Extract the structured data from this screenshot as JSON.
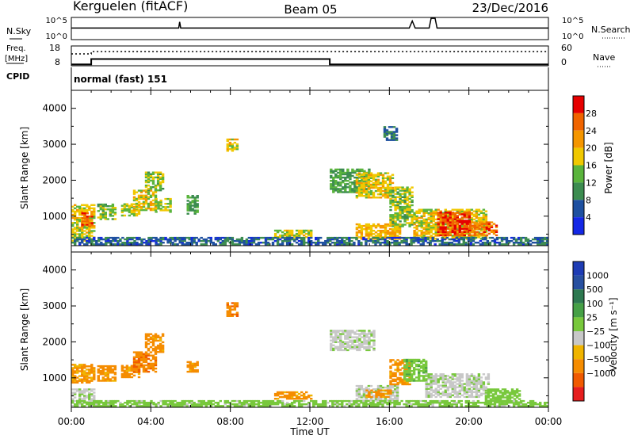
{
  "header": {
    "station": "Kerguelen (fitACF)",
    "beam": "Beam 05",
    "date": "23/Dec/2016"
  },
  "nsky_strip": {
    "label": "N.Sky",
    "right_label": "N.Search",
    "ticks_left": [
      "10^5",
      "10^0"
    ],
    "ticks_right": [
      "10^5",
      "10^0"
    ]
  },
  "freq_strip": {
    "label_line1": "Freq.",
    "label_line2": "[MHz]",
    "right_label": "Nave",
    "ticks_left": [
      "18",
      "8"
    ],
    "ticks_right": [
      "60",
      "0"
    ],
    "cpid_label": "CPID",
    "mode_text": "normal (fast) 151"
  },
  "x_axis": {
    "label": "Time UT",
    "tick_labels": [
      "00:00",
      "04:00",
      "08:00",
      "12:00",
      "16:00",
      "20:00",
      "00:00"
    ]
  },
  "colors": {
    "power_scale": [
      "#1428e6",
      "#1e50a0",
      "#3c8c50",
      "#5ab43c",
      "#f0c800",
      "#f59600",
      "#f06400",
      "#e60000"
    ],
    "velocity_scale": [
      "#1e3cb4",
      "#2850a0",
      "#2d7850",
      "#46a046",
      "#78c83c",
      "#c8c8c8",
      "#f0b400",
      "#f58c00",
      "#f05a00",
      "#e61e1e"
    ]
  },
  "chart_data": [
    {
      "type": "heatmap",
      "panel": "power",
      "ylabel": "Slant Range [km]",
      "ylim": [
        180,
        4500
      ],
      "y_ticks": [
        "1000",
        "2000",
        "3000",
        "4000"
      ],
      "xlim": [
        0,
        24
      ],
      "colorbar": {
        "label": "Power [dB]",
        "tick_labels": [
          "4",
          "8",
          "12",
          "16",
          "20",
          "24",
          "28"
        ]
      },
      "echo_regions": [
        {
          "t0": 0.0,
          "t1": 1.2,
          "r0": 300,
          "r1": 1300,
          "value": 18
        },
        {
          "t0": 0.5,
          "t1": 1.0,
          "r0": 700,
          "r1": 1100,
          "value": 26
        },
        {
          "t0": 1.3,
          "t1": 2.2,
          "r0": 900,
          "r1": 1350,
          "value": 14
        },
        {
          "t0": 2.5,
          "t1": 3.4,
          "r0": 1000,
          "r1": 1350,
          "value": 16
        },
        {
          "t0": 3.1,
          "t1": 4.2,
          "r0": 1150,
          "r1": 1700,
          "value": 18
        },
        {
          "t0": 3.7,
          "t1": 4.6,
          "r0": 1700,
          "r1": 2200,
          "value": 15
        },
        {
          "t0": 4.2,
          "t1": 5.0,
          "r0": 1100,
          "r1": 1500,
          "value": 16
        },
        {
          "t0": 5.8,
          "t1": 6.3,
          "r0": 1050,
          "r1": 1550,
          "value": 12
        },
        {
          "t0": 7.8,
          "t1": 8.3,
          "r0": 2800,
          "r1": 3150,
          "value": 18
        },
        {
          "t0": 10.2,
          "t1": 12.0,
          "r0": 400,
          "r1": 600,
          "value": 17
        },
        {
          "t0": 13.0,
          "t1": 15.0,
          "r0": 1650,
          "r1": 2300,
          "value": 12
        },
        {
          "t0": 14.3,
          "t1": 16.2,
          "r0": 1500,
          "r1": 2200,
          "value": 18
        },
        {
          "t0": 14.3,
          "t1": 16.5,
          "r0": 350,
          "r1": 800,
          "value": 20
        },
        {
          "t0": 15.7,
          "t1": 16.4,
          "r0": 3100,
          "r1": 3500,
          "value": 8
        },
        {
          "t0": 16.0,
          "t1": 17.2,
          "r0": 700,
          "r1": 1800,
          "value": 15
        },
        {
          "t0": 17.2,
          "t1": 20.9,
          "r0": 350,
          "r1": 1200,
          "value": 18
        },
        {
          "t0": 18.4,
          "t1": 20.0,
          "r0": 450,
          "r1": 1100,
          "value": 28
        },
        {
          "t0": 20.0,
          "t1": 21.4,
          "r0": 450,
          "r1": 850,
          "value": 25
        },
        {
          "t0": 0.0,
          "t1": 24.0,
          "r0": 200,
          "r1": 400,
          "value": 7
        }
      ]
    },
    {
      "type": "heatmap",
      "panel": "velocity",
      "ylabel": "Slant Range [km]",
      "ylim": [
        180,
        4500
      ],
      "y_ticks": [
        "1000",
        "2000",
        "3000",
        "4000"
      ],
      "xlim": [
        0,
        24
      ],
      "colorbar": {
        "label": "Velocity [m s⁻¹]",
        "tick_labels": [
          "1000",
          "500",
          "100",
          "25",
          "−25",
          "−100",
          "−500",
          "−1000"
        ]
      },
      "echo_regions": [
        {
          "t0": 0.0,
          "t1": 1.2,
          "r0": 850,
          "r1": 1350,
          "value": -120
        },
        {
          "t0": 0.0,
          "t1": 1.2,
          "r0": 300,
          "r1": 700,
          "value": 10
        },
        {
          "t0": 1.3,
          "t1": 2.2,
          "r0": 900,
          "r1": 1350,
          "value": -150
        },
        {
          "t0": 2.5,
          "t1": 3.4,
          "r0": 1000,
          "r1": 1350,
          "value": -150
        },
        {
          "t0": 3.1,
          "t1": 4.2,
          "r0": 1150,
          "r1": 1700,
          "value": -200
        },
        {
          "t0": 3.7,
          "t1": 4.6,
          "r0": 1700,
          "r1": 2200,
          "value": -150
        },
        {
          "t0": 5.8,
          "t1": 6.3,
          "r0": 1150,
          "r1": 1450,
          "value": -150
        },
        {
          "t0": 7.8,
          "t1": 8.3,
          "r0": 2700,
          "r1": 3100,
          "value": -200
        },
        {
          "t0": 10.2,
          "t1": 12.0,
          "r0": 400,
          "r1": 600,
          "value": -150
        },
        {
          "t0": 13.0,
          "t1": 15.2,
          "r0": 1750,
          "r1": 2300,
          "value": 10
        },
        {
          "t0": 14.3,
          "t1": 16.4,
          "r0": 350,
          "r1": 800,
          "value": 10
        },
        {
          "t0": 14.8,
          "t1": 16.0,
          "r0": 450,
          "r1": 650,
          "value": -150
        },
        {
          "t0": 16.0,
          "t1": 17.0,
          "r0": 800,
          "r1": 1500,
          "value": -150
        },
        {
          "t0": 16.7,
          "t1": 17.8,
          "r0": 900,
          "r1": 1500,
          "value": 80
        },
        {
          "t0": 17.8,
          "t1": 21.0,
          "r0": 450,
          "r1": 1100,
          "value": 10
        },
        {
          "t0": 20.8,
          "t1": 22.5,
          "r0": 300,
          "r1": 700,
          "value": 60
        },
        {
          "t0": 0.0,
          "t1": 24.0,
          "r0": 200,
          "r1": 380,
          "value": 50
        }
      ]
    },
    {
      "type": "line",
      "panel": "frequency",
      "ylim": [
        8,
        18
      ],
      "series": [
        {
          "x": [
            0,
            1.0,
            1.0,
            13.0,
            13.0,
            24
          ],
          "y": [
            8.7,
            8.7,
            11.4,
            11.4,
            8.7,
            8.7
          ]
        }
      ]
    },
    {
      "type": "line",
      "panel": "nave",
      "ylim": [
        0,
        60
      ],
      "series": [
        {
          "x": [
            0,
            1.0,
            1.0,
            24
          ],
          "y": [
            36,
            36,
            43,
            43
          ]
        }
      ]
    },
    {
      "type": "line",
      "panel": "nsky",
      "ylim": [
        0,
        5
      ],
      "series": [
        {
          "x": [
            0,
            5.4,
            5.45,
            5.5,
            17.0,
            17.15,
            17.3,
            18.0,
            18.1,
            18.3,
            18.4,
            24
          ],
          "y": [
            2.6,
            2.6,
            4.0,
            2.6,
            2.6,
            4.2,
            2.6,
            2.6,
            4.8,
            4.8,
            2.6,
            2.6
          ]
        }
      ]
    }
  ]
}
